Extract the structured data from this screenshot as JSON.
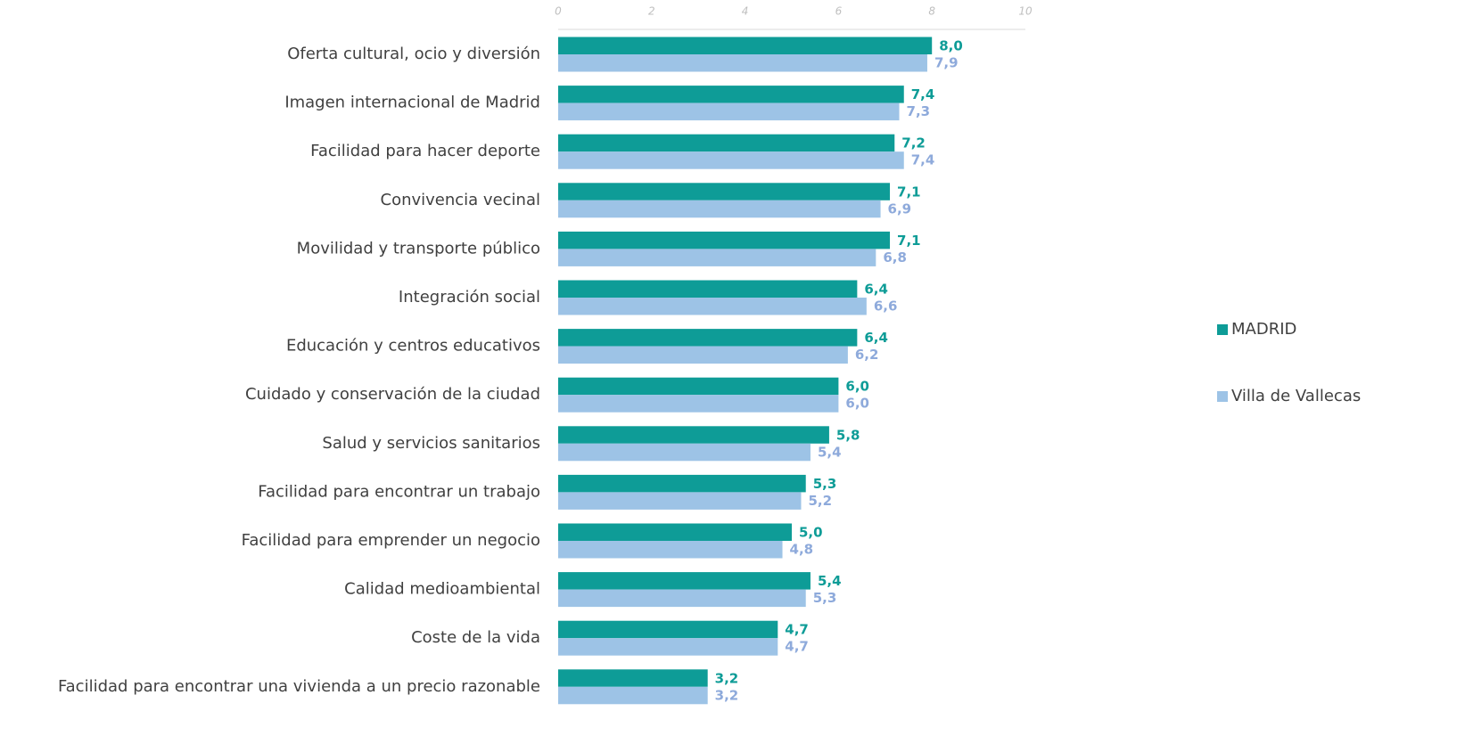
{
  "chart_data": {
    "type": "barh",
    "categories": [
      "Oferta cultural, ocio y diversión",
      "Imagen internacional de Madrid",
      "Facilidad para hacer deporte",
      "Convivencia vecinal",
      "Movilidad y transporte público",
      "Integración social",
      "Educación y centros educativos",
      "Cuidado y conservación de la ciudad",
      "Salud y servicios sanitarios",
      "Facilidad para encontrar un trabajo",
      "Facilidad para emprender un negocio",
      "Calidad medioambiental",
      "Coste de la vida",
      "Facilidad para encontrar una vivienda a un precio razonable"
    ],
    "series": [
      {
        "name": "MADRID",
        "color": "#0e9c97",
        "label_color": "#0e9c97",
        "values": [
          8.0,
          7.4,
          7.2,
          7.1,
          7.1,
          6.4,
          6.4,
          6.0,
          5.8,
          5.3,
          5.0,
          5.4,
          4.7,
          3.2
        ],
        "value_labels": [
          "8,0",
          "7,4",
          "7,2",
          "7,1",
          "7,1",
          "6,4",
          "6,4",
          "6,0",
          "5,8",
          "5,3",
          "5,0",
          "5,4",
          "4,7",
          "3,2"
        ]
      },
      {
        "name": "Villa de Vallecas",
        "color": "#9dc3e6",
        "label_color": "#8eaadb",
        "values": [
          7.9,
          7.3,
          7.4,
          6.9,
          6.8,
          6.6,
          6.2,
          6.0,
          5.4,
          5.2,
          4.8,
          5.3,
          4.7,
          3.2
        ],
        "value_labels": [
          "7,9",
          "7,3",
          "7,4",
          "6,9",
          "6,8",
          "6,6",
          "6,2",
          "6,0",
          "5,4",
          "5,2",
          "4,8",
          "5,3",
          "4,7",
          "3,2"
        ]
      }
    ],
    "xlim": [
      0,
      10
    ],
    "xticks": [
      0,
      2,
      4,
      6,
      8,
      10
    ],
    "grid": false,
    "legend": "right"
  }
}
